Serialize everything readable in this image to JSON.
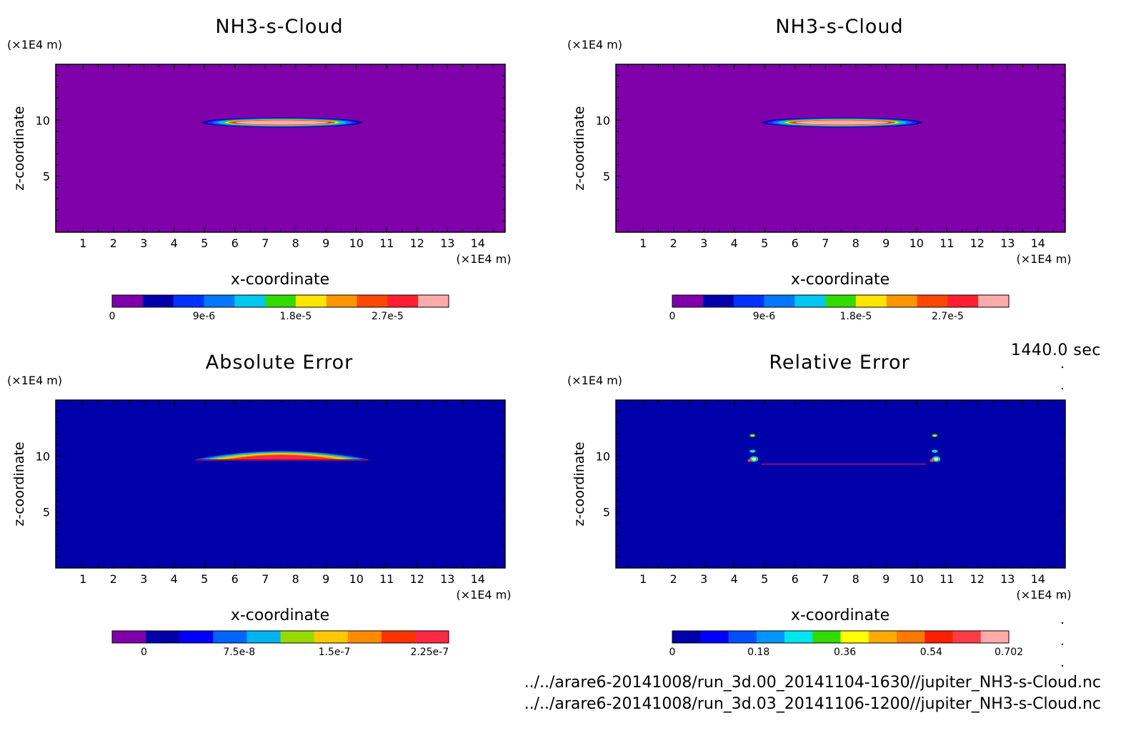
{
  "chart_data": [
    {
      "type": "heatmap",
      "title": "NH3-s-Cloud",
      "xlabel": "x-coordinate",
      "ylabel": "z-coordinate",
      "x_unit": "(×1E4 m)",
      "y_unit": "(×1E4 m)",
      "x_ticks": [
        "1",
        "2",
        "3",
        "4",
        "5",
        "6",
        "7",
        "8",
        "9",
        "10",
        "11",
        "12",
        "13",
        "14"
      ],
      "y_ticks": [
        "5",
        "10"
      ],
      "xlim": [
        0.1,
        14.9
      ],
      "ylim": [
        0,
        15
      ],
      "background_color": "#7f00aa",
      "feature": {
        "x_start": 4.9,
        "x_end": 10.2,
        "z_center": 9.8,
        "z_thickness": 0.8,
        "shape": "lens"
      },
      "colorbar": {
        "tick_labels": [
          "0",
          "9e-6",
          "1.8e-5",
          "2.7e-5"
        ],
        "tick_values": [
          0,
          9e-06,
          1.8e-05,
          2.7e-05
        ],
        "range": [
          0,
          3.3e-05
        ],
        "colors": [
          "#7f00aa",
          "#0000aa",
          "#0032ff",
          "#0078ff",
          "#00c8f0",
          "#32dc00",
          "#ffe600",
          "#ff9600",
          "#ff4600",
          "#ff1e32",
          "#ffaaaa"
        ]
      }
    },
    {
      "type": "heatmap",
      "title": "NH3-s-Cloud",
      "xlabel": "x-coordinate",
      "ylabel": "z-coordinate",
      "x_unit": "(×1E4 m)",
      "y_unit": "(×1E4 m)",
      "x_ticks": [
        "1",
        "2",
        "3",
        "4",
        "5",
        "6",
        "7",
        "8",
        "9",
        "10",
        "11",
        "12",
        "13",
        "14"
      ],
      "y_ticks": [
        "5",
        "10"
      ],
      "xlim": [
        0.1,
        14.9
      ],
      "ylim": [
        0,
        15
      ],
      "background_color": "#7f00aa",
      "feature": {
        "x_start": 4.9,
        "x_end": 10.2,
        "z_center": 9.8,
        "z_thickness": 0.8,
        "shape": "lens"
      },
      "colorbar": {
        "tick_labels": [
          "0",
          "9e-6",
          "1.8e-5",
          "2.7e-5"
        ],
        "tick_values": [
          0,
          9e-06,
          1.8e-05,
          2.7e-05
        ],
        "range": [
          0,
          3.3e-05
        ],
        "colors": [
          "#7f00aa",
          "#0000aa",
          "#0032ff",
          "#0078ff",
          "#00c8f0",
          "#32dc00",
          "#ffe600",
          "#ff9600",
          "#ff4600",
          "#ff1e32",
          "#ffaaaa"
        ]
      }
    },
    {
      "type": "heatmap",
      "title": "Absolute Error",
      "xlabel": "x-coordinate",
      "ylabel": "z-coordinate",
      "x_unit": "(×1E4 m)",
      "y_unit": "(×1E4 m)",
      "x_ticks": [
        "1",
        "2",
        "3",
        "4",
        "5",
        "6",
        "7",
        "8",
        "9",
        "10",
        "11",
        "12",
        "13",
        "14"
      ],
      "y_ticks": [
        "5",
        "10"
      ],
      "xlim": [
        0.1,
        14.9
      ],
      "ylim": [
        0,
        15
      ],
      "background_color": "#0000aa",
      "feature": {
        "x_start": 4.7,
        "x_end": 10.4,
        "z_center": 9.9,
        "z_thickness": 0.8,
        "shape": "dome"
      },
      "colorbar": {
        "tick_labels": [
          "0",
          "7.5e-8",
          "1.5e-7",
          "2.25e-7"
        ],
        "tick_values": [
          0,
          7.5e-08,
          1.5e-07,
          2.25e-07
        ],
        "range": [
          -2.5e-08,
          2.4e-07
        ],
        "colors": [
          "#7f00aa",
          "#0000aa",
          "#0000ff",
          "#0064ff",
          "#00b4f0",
          "#96dc00",
          "#ffc800",
          "#ff8c00",
          "#ff3200",
          "#ff2846"
        ]
      }
    },
    {
      "type": "heatmap",
      "title": "Relative Error",
      "xlabel": "x-coordinate",
      "ylabel": "z-coordinate",
      "x_unit": "(×1E4 m)",
      "y_unit": "(×1E4 m)",
      "x_ticks": [
        "1",
        "2",
        "3",
        "4",
        "5",
        "6",
        "7",
        "8",
        "9",
        "10",
        "11",
        "12",
        "13",
        "14"
      ],
      "y_ticks": [
        "5",
        "10"
      ],
      "xlim": [
        0.1,
        14.9
      ],
      "ylim": [
        0,
        15
      ],
      "background_color": "#0000aa",
      "feature": {
        "x_start": 4.6,
        "x_end": 10.6,
        "z_center": 9.6,
        "z_thickness": 0.15,
        "shape": "edges"
      },
      "colorbar": {
        "tick_labels": [
          "0",
          "0.18",
          "0.36",
          "0.54",
          "0.702"
        ],
        "tick_values": [
          0,
          0.18,
          0.36,
          0.54,
          0.702
        ],
        "range": [
          0,
          0.702
        ],
        "colors": [
          "#0000aa",
          "#0000ff",
          "#0050ff",
          "#0096ff",
          "#00e6f0",
          "#32dc00",
          "#ffff00",
          "#ffaa00",
          "#ff7800",
          "#ff1e00",
          "#ff3c46",
          "#ffaaaa"
        ]
      }
    }
  ],
  "time_label": "1440.0 sec",
  "file_paths": [
    "../../arare6-20141008/run_3d.00_20141104-1630//jupiter_NH3-s-Cloud.nc",
    "../../arare6-20141008/run_3d.03_20141106-1200//jupiter_NH3-s-Cloud.nc"
  ]
}
